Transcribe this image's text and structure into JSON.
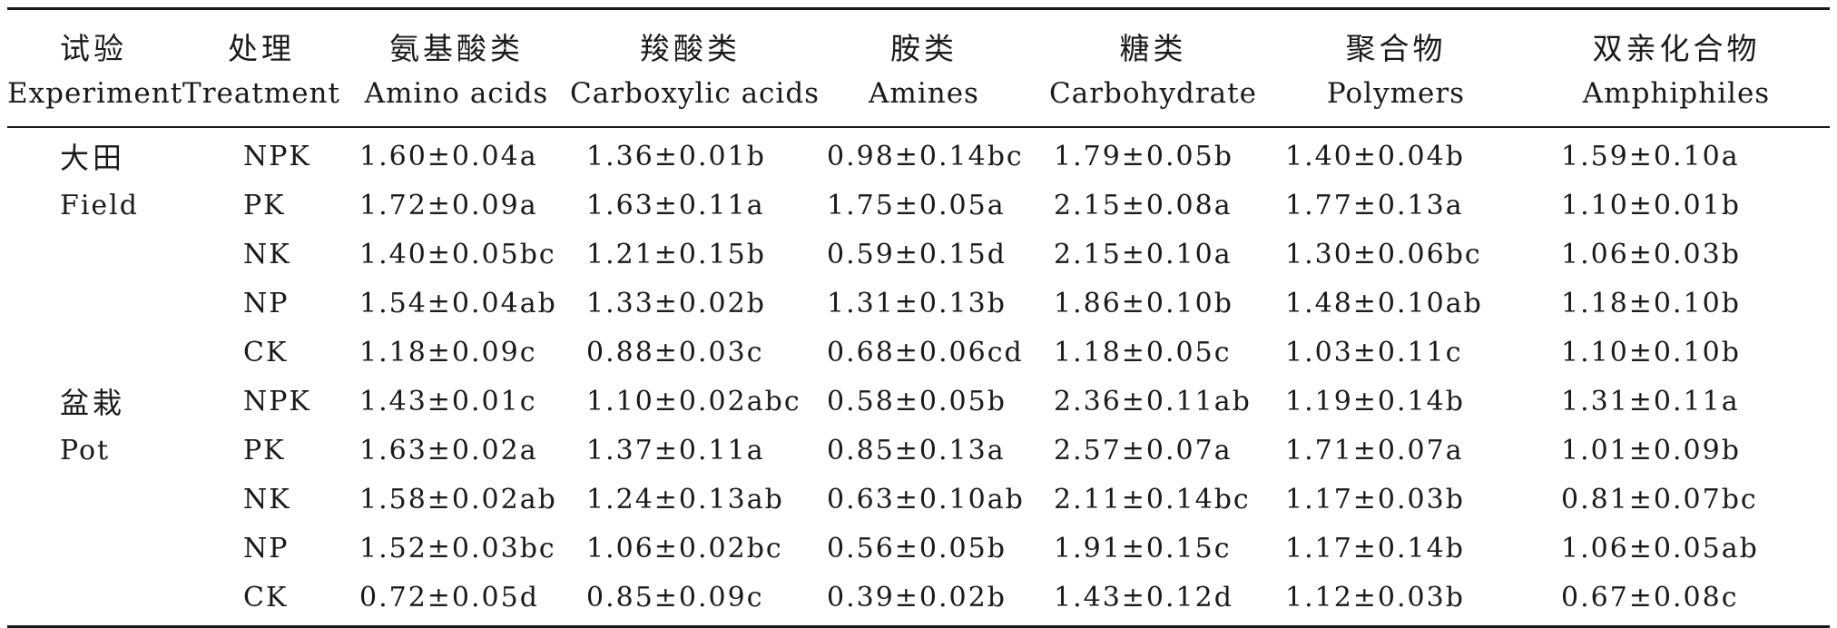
{
  "table": {
    "header_zh": [
      "试验",
      "处理",
      "氨基酸类",
      "羧酸类",
      "胺类",
      "糖类",
      "聚合物",
      "双亲化合物"
    ],
    "header_en": [
      "Experiment",
      "Treatment",
      "Amino acids",
      "Carboxylic acids",
      "Amines",
      "Carbohydrate",
      "Polymers",
      "Amphiphiles"
    ],
    "rows": [
      {
        "exp": "大田",
        "treatment": "NPK",
        "values": [
          "1.60±0.04a",
          "1.36±0.01b",
          "0.98±0.14bc",
          "1.79±0.05b",
          "1.40±0.04b",
          "1.59±0.10a"
        ]
      },
      {
        "exp": "Field",
        "treatment": "PK",
        "values": [
          "1.72±0.09a",
          "1.63±0.11a",
          "1.75±0.05a",
          "2.15±0.08a",
          "1.77±0.13a",
          "1.10±0.01b"
        ]
      },
      {
        "exp": "",
        "treatment": "NK",
        "values": [
          "1.40±0.05bc",
          "1.21±0.15b",
          "0.59±0.15d",
          "2.15±0.10a",
          "1.30±0.06bc",
          "1.06±0.03b"
        ]
      },
      {
        "exp": "",
        "treatment": "NP",
        "values": [
          "1.54±0.04ab",
          "1.33±0.02b",
          "1.31±0.13b",
          "1.86±0.10b",
          "1.48±0.10ab",
          "1.18±0.10b"
        ]
      },
      {
        "exp": "",
        "treatment": "CK",
        "values": [
          "1.18±0.09c",
          "0.88±0.03c",
          "0.68±0.06cd",
          "1.18±0.05c",
          "1.03±0.11c",
          "1.10±0.10b"
        ]
      },
      {
        "exp": "盆栽",
        "treatment": "NPK",
        "values": [
          "1.43±0.01c",
          "1.10±0.02abc",
          "0.58±0.05b",
          "2.36±0.11ab",
          "1.19±0.14b",
          "1.31±0.11a"
        ]
      },
      {
        "exp": "Pot",
        "treatment": "PK",
        "values": [
          "1.63±0.02a",
          "1.37±0.11a",
          "0.85±0.13a",
          "2.57±0.07a",
          "1.71±0.07a",
          "1.01±0.09b"
        ]
      },
      {
        "exp": "",
        "treatment": "NK",
        "values": [
          "1.58±0.02ab",
          "1.24±0.13ab",
          "0.63±0.10ab",
          "2.11±0.14bc",
          "1.17±0.03b",
          "0.81±0.07bc"
        ]
      },
      {
        "exp": "",
        "treatment": "NP",
        "values": [
          "1.52±0.03bc",
          "1.06±0.02bc",
          "0.56±0.05b",
          "1.91±0.15c",
          "1.17±0.14b",
          "1.06±0.05ab"
        ]
      },
      {
        "exp": "",
        "treatment": "CK",
        "values": [
          "0.72±0.05d",
          "0.85±0.09c",
          "0.39±0.02b",
          "1.43±0.12d",
          "1.12±0.03b",
          "0.67±0.08c"
        ]
      }
    ]
  }
}
